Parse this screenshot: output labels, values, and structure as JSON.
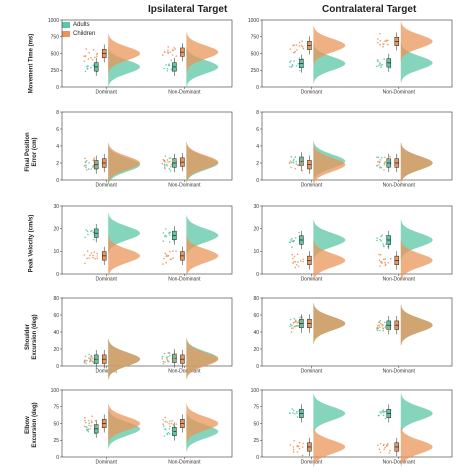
{
  "column_titles": [
    "Ipsilateral Target",
    "Contralateral Target"
  ],
  "legend": [
    {
      "label": "Adults",
      "color": "#5cc6a6"
    },
    {
      "label": "Children",
      "color": "#e9955a"
    }
  ],
  "colors": {
    "adults": "#5cc6a6",
    "children": "#e9955a"
  },
  "row_ylabels": [
    "Movement Time (ms)",
    "Final Position\nError (cm)",
    "Peak Velocity (cm/s)",
    "Shoulder\nExcursion (deg)",
    "Elbow\nExcursion (deg)"
  ],
  "chart_data": [
    {
      "type": "raincloud",
      "row": 0,
      "column": "Ipsilateral Target",
      "ylabel": "Movement Time (ms)",
      "ylim": [
        0,
        1000
      ],
      "yticks": [
        0,
        250,
        500,
        750,
        1000
      ],
      "categories": [
        "Dominant",
        "Non-Dominant"
      ],
      "series": [
        {
          "name": "Adults",
          "medians": [
            300,
            300
          ]
        },
        {
          "name": "Children",
          "medians": [
            500,
            520
          ]
        }
      ]
    },
    {
      "type": "raincloud",
      "row": 0,
      "column": "Contralateral Target",
      "ylabel": "Movement Time (ms)",
      "ylim": [
        0,
        1000
      ],
      "yticks": [
        0,
        250,
        500,
        750,
        1000
      ],
      "categories": [
        "Dominant",
        "Non-Dominant"
      ],
      "series": [
        {
          "name": "Adults",
          "medians": [
            350,
            360
          ]
        },
        {
          "name": "Children",
          "medians": [
            620,
            680
          ]
        }
      ]
    },
    {
      "type": "raincloud",
      "row": 1,
      "column": "Ipsilateral Target",
      "ylabel": "Final Position Error (cm)",
      "ylim": [
        0,
        8
      ],
      "yticks": [
        0,
        2,
        4,
        6,
        8
      ],
      "categories": [
        "Dominant",
        "Non-Dominant"
      ],
      "series": [
        {
          "name": "Adults",
          "medians": [
            1.8,
            2.0
          ]
        },
        {
          "name": "Children",
          "medians": [
            2.0,
            2.1
          ]
        }
      ]
    },
    {
      "type": "raincloud",
      "row": 1,
      "column": "Contralateral Target",
      "ylabel": "Final Position Error (cm)",
      "ylim": [
        0,
        8
      ],
      "yticks": [
        0,
        2,
        4,
        6,
        8
      ],
      "categories": [
        "Dominant",
        "Non-Dominant"
      ],
      "series": [
        {
          "name": "Adults",
          "medians": [
            2.2,
            2.0
          ]
        },
        {
          "name": "Children",
          "medians": [
            1.8,
            2.0
          ]
        }
      ]
    },
    {
      "type": "raincloud",
      "row": 2,
      "column": "Ipsilateral Target",
      "ylabel": "Peak Velocity (cm/s)",
      "ylim": [
        0,
        30
      ],
      "yticks": [
        0,
        10,
        20,
        30
      ],
      "categories": [
        "Dominant",
        "Non-Dominant"
      ],
      "series": [
        {
          "name": "Adults",
          "medians": [
            18,
            17
          ]
        },
        {
          "name": "Children",
          "medians": [
            8,
            8
          ]
        }
      ]
    },
    {
      "type": "raincloud",
      "row": 2,
      "column": "Contralateral Target",
      "ylabel": "Peak Velocity (cm/s)",
      "ylim": [
        0,
        30
      ],
      "yticks": [
        0,
        10,
        20,
        30
      ],
      "categories": [
        "Dominant",
        "Non-Dominant"
      ],
      "series": [
        {
          "name": "Adults",
          "medians": [
            15,
            15
          ]
        },
        {
          "name": "Children",
          "medians": [
            6,
            6
          ]
        }
      ]
    },
    {
      "type": "raincloud",
      "row": 3,
      "column": "Ipsilateral Target",
      "ylabel": "Shoulder Excursion (deg)",
      "ylim": [
        0,
        80
      ],
      "yticks": [
        0,
        20,
        40,
        60,
        80
      ],
      "categories": [
        "Dominant",
        "Non-Dominant"
      ],
      "series": [
        {
          "name": "Adults",
          "medians": [
            8,
            9
          ]
        },
        {
          "name": "Children",
          "medians": [
            8,
            8
          ]
        }
      ]
    },
    {
      "type": "raincloud",
      "row": 3,
      "column": "Contralateral Target",
      "ylabel": "Shoulder Excursion (deg)",
      "ylim": [
        0,
        80
      ],
      "yticks": [
        0,
        20,
        40,
        60,
        80
      ],
      "categories": [
        "Dominant",
        "Non-Dominant"
      ],
      "series": [
        {
          "name": "Adults",
          "medians": [
            50,
            48
          ]
        },
        {
          "name": "Children",
          "medians": [
            50,
            48
          ]
        }
      ]
    },
    {
      "type": "raincloud",
      "row": 4,
      "column": "Ipsilateral Target",
      "ylabel": "Elbow Excursion (deg)",
      "ylim": [
        0,
        100
      ],
      "yticks": [
        0,
        25,
        50,
        75,
        100
      ],
      "categories": [
        "Dominant",
        "Non-Dominant"
      ],
      "series": [
        {
          "name": "Adults",
          "medians": [
            42,
            38
          ]
        },
        {
          "name": "Children",
          "medians": [
            50,
            50
          ]
        }
      ]
    },
    {
      "type": "raincloud",
      "row": 4,
      "column": "Contralateral Target",
      "ylabel": "Elbow Excursion (deg)",
      "ylim": [
        0,
        100
      ],
      "yticks": [
        0,
        25,
        50,
        75,
        100
      ],
      "categories": [
        "Dominant",
        "Non-Dominant"
      ],
      "series": [
        {
          "name": "Adults",
          "medians": [
            65,
            65
          ]
        },
        {
          "name": "Children",
          "medians": [
            15,
            15
          ]
        }
      ]
    }
  ]
}
